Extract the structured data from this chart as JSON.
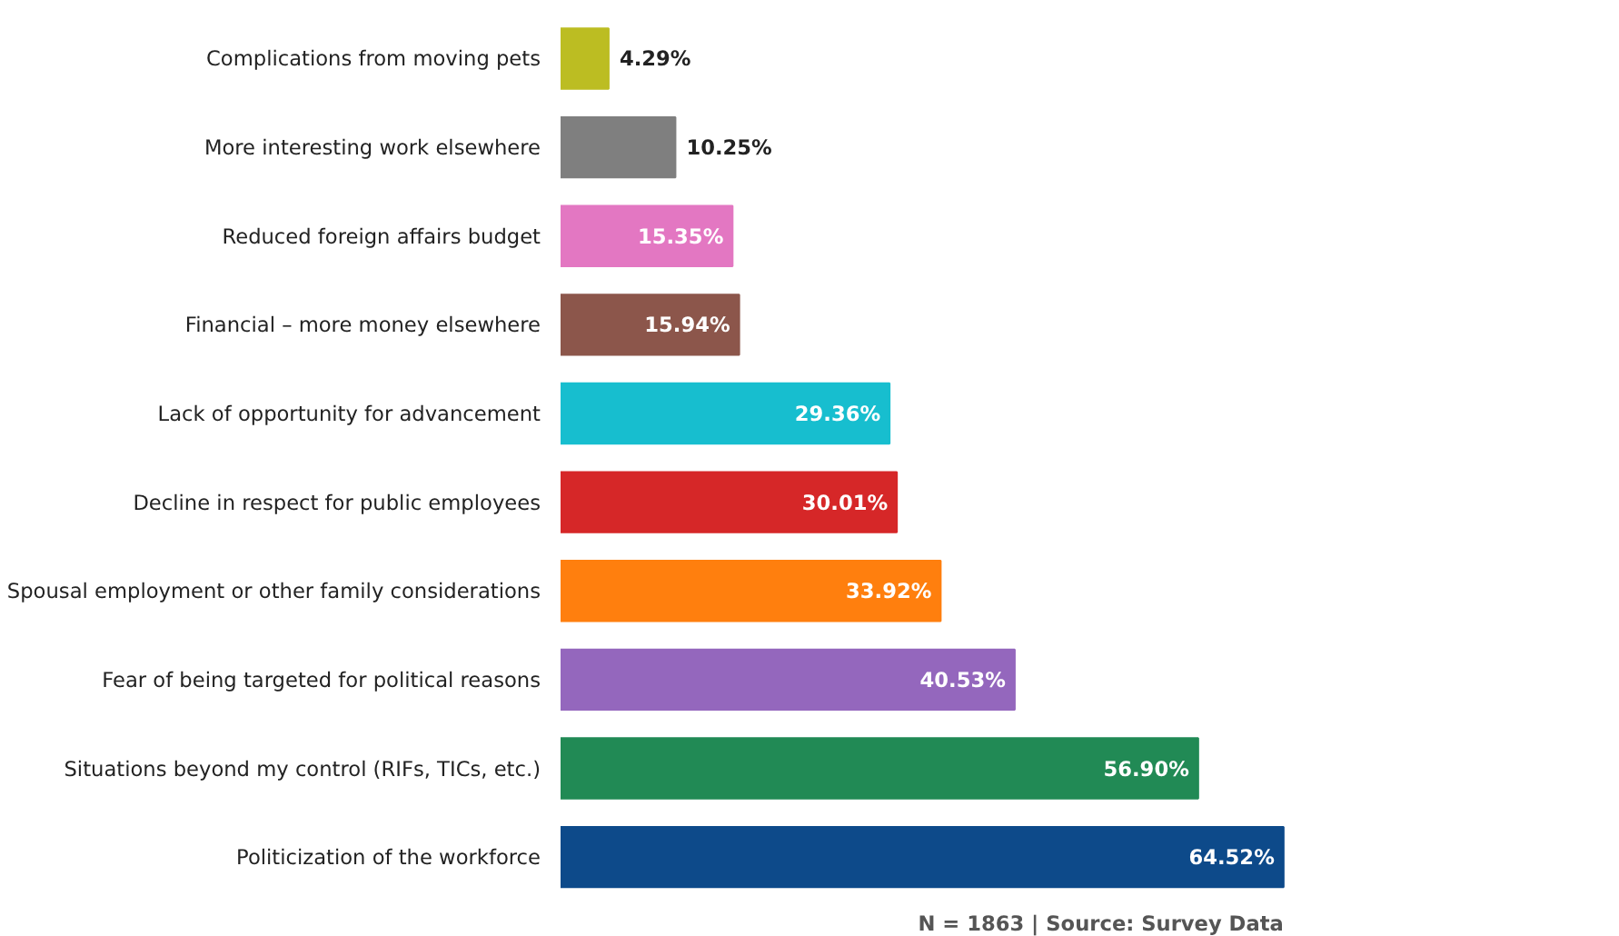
{
  "chart_data": {
    "type": "bar",
    "orientation": "horizontal",
    "categories": [
      "Complications from moving pets",
      "More interesting work elsewhere",
      "Reduced foreign affairs budget",
      "Financial – more money elsewhere",
      "Lack of opportunity for advancement",
      "Decline in respect for public employees",
      "Spousal employment or other family considerations",
      "Fear of being targeted for political reasons",
      "Situations beyond my control (RIFs, TICs, etc.)",
      "Politicization of the workforce"
    ],
    "values": [
      4.29,
      10.25,
      15.35,
      15.94,
      29.36,
      30.01,
      33.92,
      40.53,
      56.9,
      64.52
    ],
    "value_labels": [
      "4.29%",
      "10.25%",
      "15.35%",
      "15.94%",
      "29.36%",
      "30.01%",
      "33.92%",
      "40.53%",
      "56.90%",
      "64.52%"
    ],
    "colors": [
      "#bcbd22",
      "#7f7f7f",
      "#e377c2",
      "#8c564b",
      "#17becf",
      "#d62728",
      "#ff7f0e",
      "#9467bd",
      "#218a55",
      "#0d4a8a"
    ],
    "annotations": [
      "N = 1863 | Source: Survey Data"
    ],
    "grid": false
  }
}
